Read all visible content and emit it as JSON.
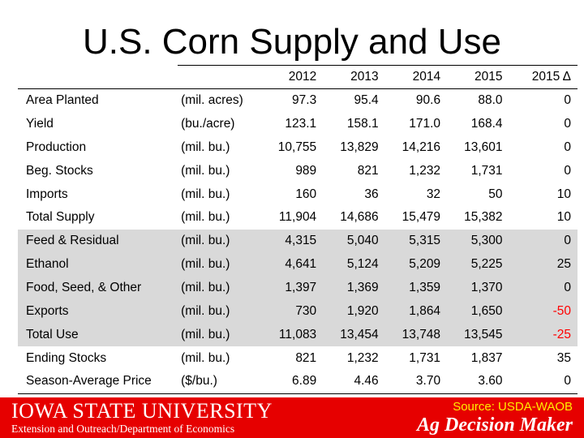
{
  "title": "U.S. Corn Supply and Use",
  "table": {
    "headers": [
      "",
      "",
      "2012",
      "2013",
      "2014",
      "2015",
      "2015 Δ"
    ],
    "rows": [
      {
        "label": "Area Planted",
        "unit": "(mil. acres)",
        "values": [
          "97.3",
          "95.4",
          "90.6",
          "88.0"
        ],
        "delta": "0",
        "shaded": false
      },
      {
        "label": "Yield",
        "unit": "(bu./acre)",
        "values": [
          "123.1",
          "158.1",
          "171.0",
          "168.4"
        ],
        "delta": "0",
        "shaded": false
      },
      {
        "label": "Production",
        "unit": "(mil. bu.)",
        "values": [
          "10,755",
          "13,829",
          "14,216",
          "13,601"
        ],
        "delta": "0",
        "shaded": false
      },
      {
        "label": "Beg. Stocks",
        "unit": "(mil. bu.)",
        "values": [
          "989",
          "821",
          "1,232",
          "1,731"
        ],
        "delta": "0",
        "shaded": false
      },
      {
        "label": "Imports",
        "unit": "(mil. bu.)",
        "values": [
          "160",
          "36",
          "32",
          "50"
        ],
        "delta": "10",
        "shaded": false
      },
      {
        "label": "Total Supply",
        "unit": "(mil. bu.)",
        "values": [
          "11,904",
          "14,686",
          "15,479",
          "15,382"
        ],
        "delta": "10",
        "shaded": false
      },
      {
        "label": "Feed & Residual",
        "unit": "(mil. bu.)",
        "values": [
          "4,315",
          "5,040",
          "5,315",
          "5,300"
        ],
        "delta": "0",
        "shaded": true
      },
      {
        "label": "Ethanol",
        "unit": "(mil. bu.)",
        "values": [
          "4,641",
          "5,124",
          "5,209",
          "5,225"
        ],
        "delta": "25",
        "shaded": true
      },
      {
        "label": "Food, Seed, & Other",
        "unit": "(mil. bu.)",
        "values": [
          "1,397",
          "1,369",
          "1,359",
          "1,370"
        ],
        "delta": "0",
        "shaded": true
      },
      {
        "label": "Exports",
        "unit": "(mil. bu.)",
        "values": [
          "730",
          "1,920",
          "1,864",
          "1,650"
        ],
        "delta": "-50",
        "shaded": true
      },
      {
        "label": "Total Use",
        "unit": "(mil. bu.)",
        "values": [
          "11,083",
          "13,454",
          "13,748",
          "13,545"
        ],
        "delta": "-25",
        "shaded": true
      },
      {
        "label": "Ending Stocks",
        "unit": "(mil. bu.)",
        "values": [
          "821",
          "1,232",
          "1,731",
          "1,837"
        ],
        "delta": "35",
        "shaded": false
      },
      {
        "label": "Season-Average Price",
        "unit": "($/bu.)",
        "values": [
          "6.89",
          "4.46",
          "3.70",
          "3.60"
        ],
        "delta": "0",
        "shaded": false
      }
    ]
  },
  "footer": {
    "university": "Iowa State University",
    "department": "Extension and Outreach/Department of Economics",
    "source": "Source: USDA-WAOB",
    "program": "Ag Decision Maker"
  },
  "colors": {
    "footer_bg": "#e60000",
    "shaded_row": "#d9d9d9",
    "negative": "#ff0000",
    "source_text": "#ffee00"
  }
}
